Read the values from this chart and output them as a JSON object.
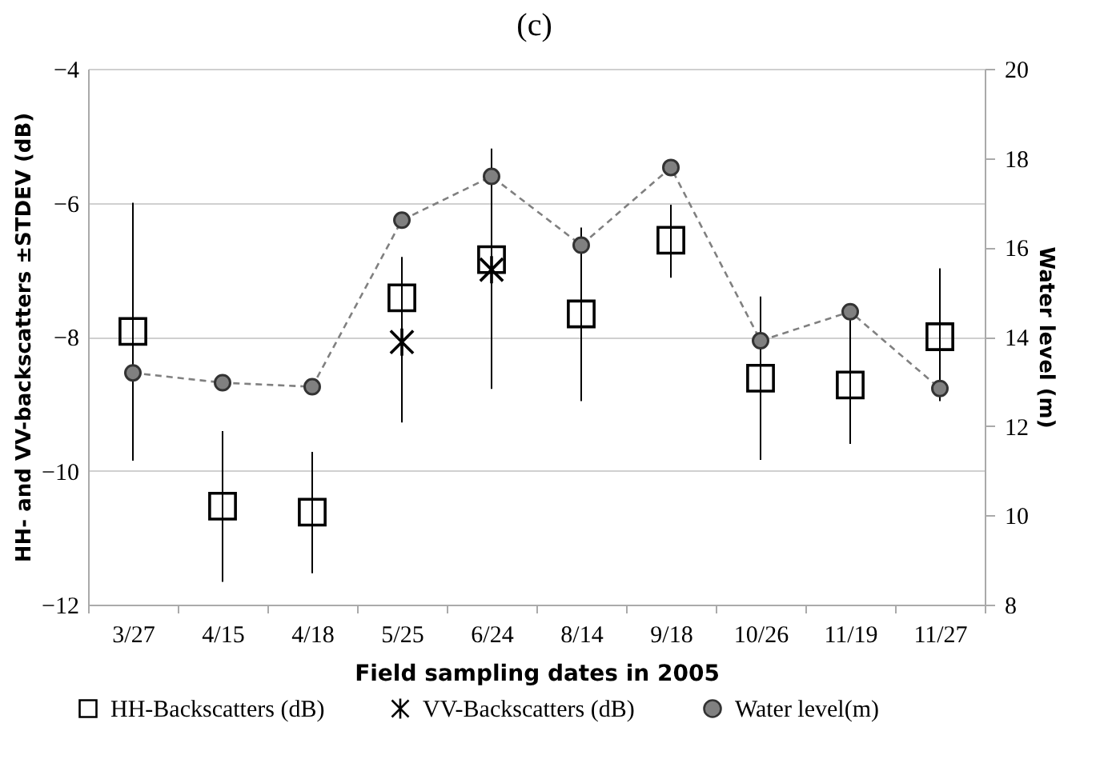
{
  "chart_data": {
    "type": "scatter",
    "title": "(c)",
    "xlabel": "Field sampling dates in 2005",
    "ylabel": "HH- and VV-backscatters ±STDEV (dB)",
    "y2label": "Water level (m)",
    "categories": [
      "3/27",
      "4/15",
      "4/18",
      "5/25",
      "6/24",
      "8/14",
      "9/18",
      "10/26",
      "11/19",
      "11/27"
    ],
    "series": [
      {
        "name": "HH-Backscatters (dB)",
        "type": "scatter",
        "marker": "square",
        "color": "#000000",
        "values": [
          -7.92,
          -10.53,
          -10.62,
          -7.42,
          -6.85,
          -7.66,
          -6.56,
          -8.62,
          -8.72,
          -8.0
        ],
        "errors": [
          [
            -9.85,
            -6.0
          ],
          [
            -11.66,
            -9.41
          ],
          [
            -11.53,
            -9.72
          ],
          [
            -9.28,
            -6.81
          ],
          [
            -8.78,
            -5.19
          ],
          [
            -8.96,
            -6.37
          ],
          [
            -7.12,
            -6.03
          ],
          [
            -9.84,
            -7.4
          ],
          [
            -9.6,
            -7.6
          ],
          [
            -8.96,
            -6.98
          ]
        ]
      },
      {
        "name": "VV-Backscatters (dB)",
        "type": "scatter",
        "marker": "cross",
        "color": "#000000",
        "values": [
          null,
          null,
          null,
          -8.08,
          -7.0,
          null,
          null,
          null,
          null,
          null
        ]
      },
      {
        "name": "Water level(m)",
        "type": "line",
        "axis": "y2",
        "marker": "circle",
        "line_style": "dashed",
        "color": "#808080",
        "values": [
          13.19,
          12.97,
          12.88,
          16.61,
          17.59,
          16.05,
          17.79,
          13.91,
          14.56,
          12.84
        ]
      }
    ],
    "ylim": [
      -12,
      -4
    ],
    "yticks": [
      -12,
      -10,
      -8,
      -6,
      -4
    ],
    "y2lim": [
      8,
      20
    ],
    "y2ticks": [
      8,
      10,
      12,
      14,
      16,
      18,
      20
    ],
    "grid": "y",
    "legend": "bottom"
  }
}
